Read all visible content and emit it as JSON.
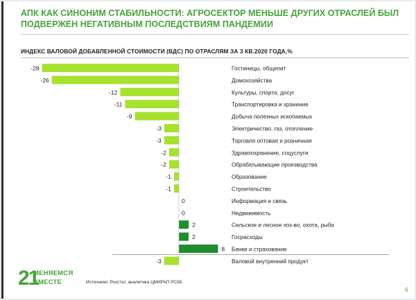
{
  "slide": {
    "title": "АПК КАК СИНОНИМ СТАБИЛЬНОСТИ: АГРОСЕКТОР МЕНЬШЕ ДРУГИХ ОТРАСЛЕЙ БЫЛ ПОДВЕРЖЕН НЕГАТИВНЫМ ПОСЛЕДСТВИЯМ ПАНДЕМИИ",
    "source": "Источники: Росстат, аналитика ЦМИРАП РСХБ",
    "page_number": "6",
    "logo": {
      "number": "21",
      "line1": "МЕНЯЕМСЯ",
      "line2": "ВМЕСТЕ"
    },
    "accent_color": "#46a33a"
  },
  "chart_data": {
    "type": "bar",
    "orientation": "horizontal",
    "title": "ИНДЕКС ВАЛОВОЙ ДОБАВЛЕННОЙ СТОИМОСТИ (ВДС) ПО ОТРАСЛЯМ ЗА 3 КВ.2020 ГОДА,%",
    "categories": [
      "Гостиницы, общепит",
      "Домохозяйства",
      "Культуры, спорта, досуг",
      "Транспортировка и хранение",
      "Добыча полезных ископаемых",
      "Электричество, газ, отопление",
      "Торговля оптовая и розничная",
      "Здравоохранение, соцуслуги",
      "Обрабатывающие производства",
      "Образование",
      "Строительство",
      "Информация и связь",
      "Недвижимость",
      "Сельское и лесное хоз-во, охота, рыба",
      "Госрасходы",
      "Банки и страхование",
      "Валовой внутренний продукт"
    ],
    "values": [
      -28,
      -26,
      -12,
      -11,
      -9,
      -3,
      -3,
      -2,
      -2,
      -1,
      -1,
      0,
      0,
      2,
      2,
      8,
      -3
    ],
    "value_labels": [
      "-28",
      "-26",
      "-12",
      "-11",
      "-9",
      "-3",
      "-3",
      "-2",
      "-2",
      "-1",
      "-1",
      "0",
      "0",
      "2",
      "2",
      "8",
      "-3"
    ],
    "colors": {
      "negative": "#a6e22e",
      "positive": "#1f8e2e",
      "gdp_separator": "#8a8a8a"
    }
  }
}
